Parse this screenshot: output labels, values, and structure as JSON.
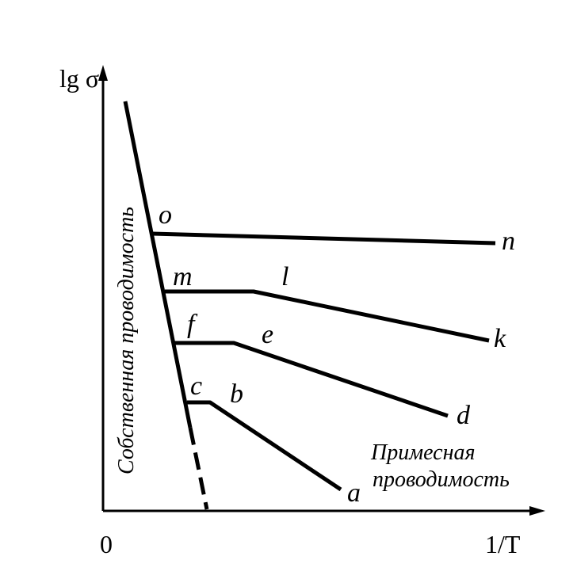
{
  "axes": {
    "y_label": "lg σ",
    "x_label": "1/T",
    "origin": "0"
  },
  "points": {
    "o": "o",
    "n": "n",
    "m": "m",
    "l": "l",
    "k": "k",
    "f": "f",
    "e": "e",
    "d": "d",
    "c": "c",
    "b": "b",
    "a": "a"
  },
  "regions": {
    "intrinsic": "Собственная проводимость",
    "impurity": [
      "Примесная",
      "проводимость"
    ]
  }
}
